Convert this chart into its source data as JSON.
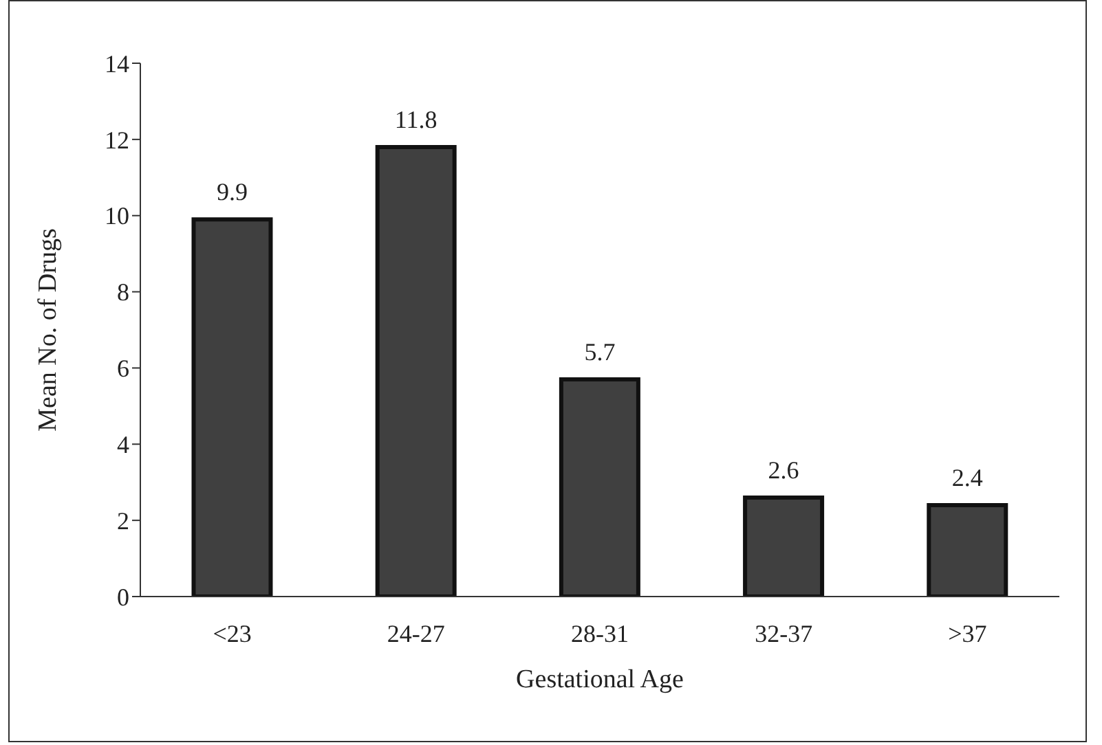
{
  "chart_data": {
    "type": "bar",
    "xlabel": "Gestational Age",
    "ylabel": "Mean No. of Drugs",
    "categories": [
      "<23",
      "24-27",
      "28-31",
      "32-37",
      ">37"
    ],
    "values": [
      9.9,
      11.8,
      5.7,
      2.6,
      2.4
    ],
    "color": "#404040",
    "ylim": [
      0,
      14
    ],
    "yticks": [
      0,
      2,
      4,
      6,
      8,
      10,
      12,
      14
    ],
    "grid": false,
    "legend": false,
    "data_labels": true
  }
}
